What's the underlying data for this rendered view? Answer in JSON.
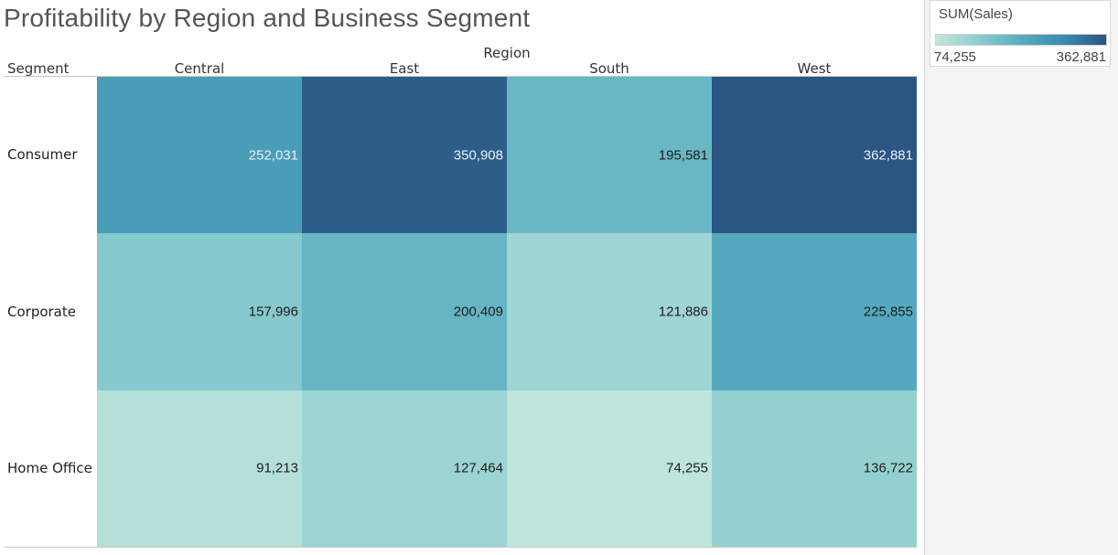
{
  "chart_data": {
    "type": "heatmap",
    "title": "Profitability by Region and Business Segment",
    "column_field": "Region",
    "row_field": "Segment",
    "columns": [
      "Central",
      "East",
      "South",
      "West"
    ],
    "rows": [
      "Consumer",
      "Corporate",
      "Home Office"
    ],
    "values": [
      [
        252031,
        350908,
        195581,
        362881
      ],
      [
        157996,
        200409,
        121886,
        225855
      ],
      [
        91213,
        127464,
        74255,
        136722
      ]
    ],
    "value_labels": [
      [
        "252,031",
        "350,908",
        "195,581",
        "362,881"
      ],
      [
        "157,996",
        "200,409",
        "121,886",
        "225,855"
      ],
      [
        "91,213",
        "127,464",
        "74,255",
        "136,722"
      ]
    ],
    "legend": {
      "title": "SUM(Sales)",
      "min": 74255,
      "max": 362881,
      "min_label": "74,255",
      "max_label": "362,881",
      "color_low": "#c0e6dc",
      "color_high": "#2b5583",
      "placement": "top-right"
    }
  }
}
